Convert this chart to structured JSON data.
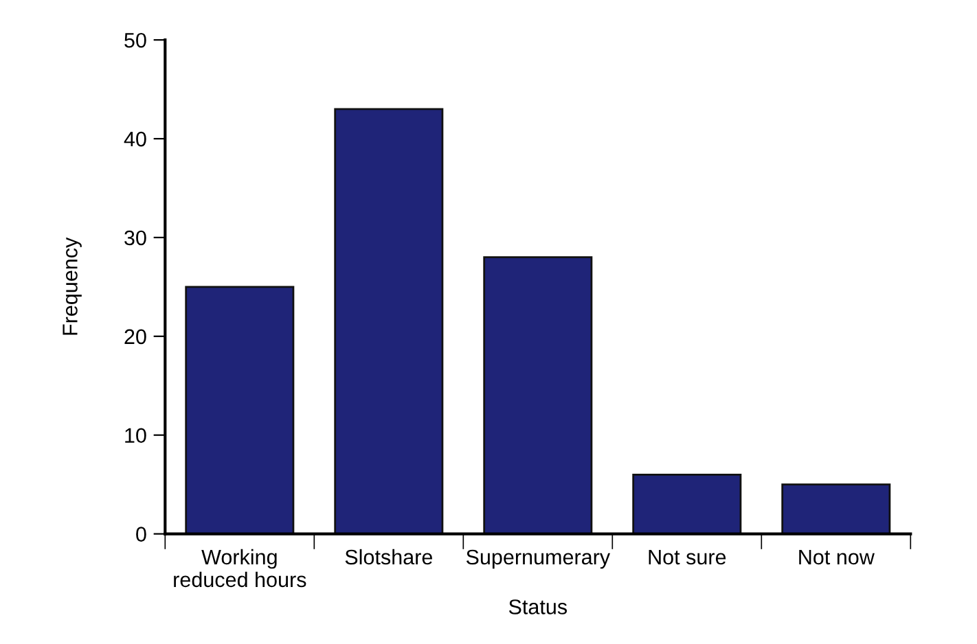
{
  "chart_data": {
    "type": "bar",
    "xlabel": "Status",
    "ylabel": "Frequency",
    "categories": [
      "Working\nreduced hours",
      "Slotshare",
      "Supernumerary",
      "Not sure",
      "Not now"
    ],
    "values": [
      25,
      43,
      28,
      6,
      5
    ],
    "color": "#1f2478",
    "ylim": [
      0,
      50
    ],
    "yticks": [
      0,
      10,
      20,
      30,
      40,
      50
    ],
    "grid": false
  }
}
